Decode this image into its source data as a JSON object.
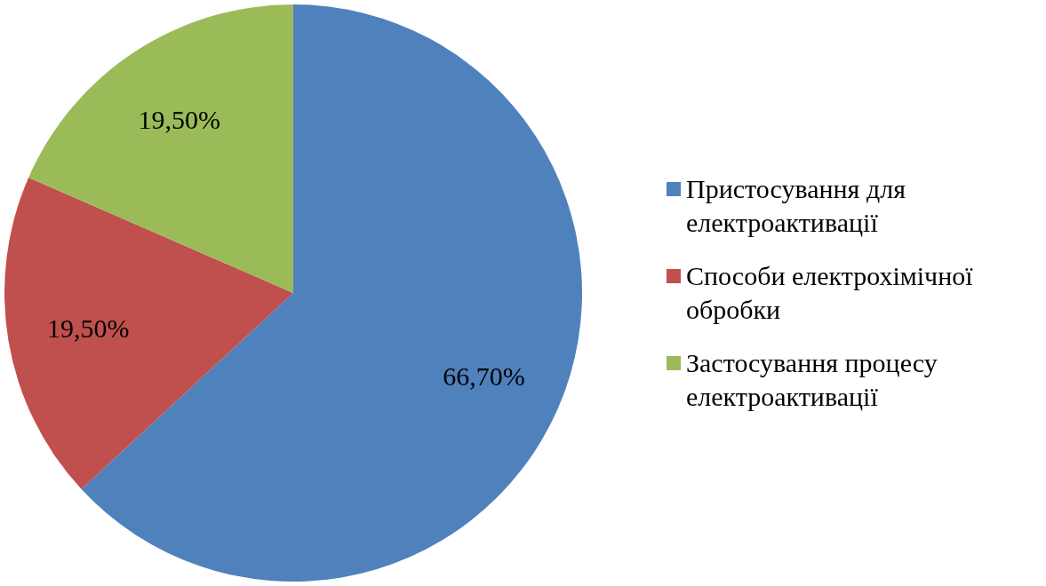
{
  "chart_data": {
    "type": "pie",
    "categories": [
      "Пристосування для електроактивації",
      "Способи електрохімічної обробки",
      "Застосування процесу електроактивації"
    ],
    "values": [
      66.7,
      19.5,
      19.5
    ],
    "colors": [
      "#4f81bd",
      "#c0504d",
      "#9bbb59"
    ],
    "value_labels": [
      "66,70%",
      "19,50%",
      "19,50%"
    ],
    "legend": "right"
  }
}
